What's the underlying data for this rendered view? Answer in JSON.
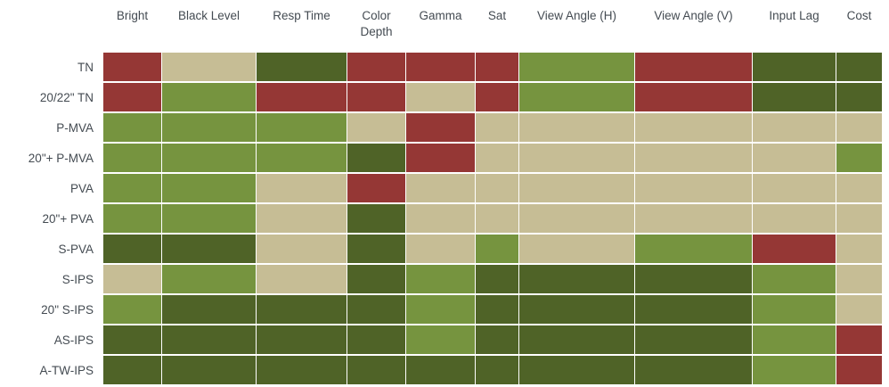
{
  "chart_data": {
    "type": "heatmap",
    "title": "",
    "description": "Comparison matrix of LCD panel types across display-quality attributes, colored by rating",
    "columns": [
      "Bright",
      "Black Level",
      "Resp Time",
      "Color Depth",
      "Gamma",
      "Sat",
      "View Angle (H)",
      "View Angle (V)",
      "Input Lag",
      "Cost"
    ],
    "rows": [
      "TN",
      "20/22\" TN",
      "P-MVA",
      "20\"+ P-MVA",
      "PVA",
      "20\"+ PVA",
      "S-PVA",
      "S-IPS",
      "20\" S-IPS",
      "AS-IPS",
      "A-TW-IPS"
    ],
    "values": [
      [
        "poor",
        "average",
        "best",
        "poor",
        "poor",
        "poor",
        "good",
        "poor",
        "best",
        "best"
      ],
      [
        "poor",
        "good",
        "poor",
        "poor",
        "average",
        "poor",
        "good",
        "poor",
        "best",
        "best"
      ],
      [
        "good",
        "good",
        "good",
        "average",
        "poor",
        "average",
        "average",
        "average",
        "average",
        "average"
      ],
      [
        "good",
        "good",
        "good",
        "best",
        "poor",
        "average",
        "average",
        "average",
        "average",
        "good"
      ],
      [
        "good",
        "good",
        "average",
        "poor",
        "average",
        "average",
        "average",
        "average",
        "average",
        "average"
      ],
      [
        "good",
        "good",
        "average",
        "best",
        "average",
        "average",
        "average",
        "average",
        "average",
        "average"
      ],
      [
        "best",
        "best",
        "average",
        "best",
        "average",
        "good",
        "average",
        "good",
        "poor",
        "average"
      ],
      [
        "average",
        "good",
        "average",
        "best",
        "good",
        "best",
        "best",
        "best",
        "good",
        "average"
      ],
      [
        "good",
        "best",
        "best",
        "best",
        "good",
        "best",
        "best",
        "best",
        "good",
        "average"
      ],
      [
        "best",
        "best",
        "best",
        "best",
        "good",
        "best",
        "best",
        "best",
        "good",
        "poor"
      ],
      [
        "best",
        "best",
        "best",
        "best",
        "best",
        "best",
        "best",
        "best",
        "good",
        "poor"
      ]
    ],
    "rating_colors": {
      "poor": "#953735",
      "average": "#c6bd95",
      "good": "#76943f",
      "best": "#4f6327"
    },
    "text_color": "#444b52",
    "background_color": "#ffffff",
    "legend_position": "none",
    "grid": false
  }
}
